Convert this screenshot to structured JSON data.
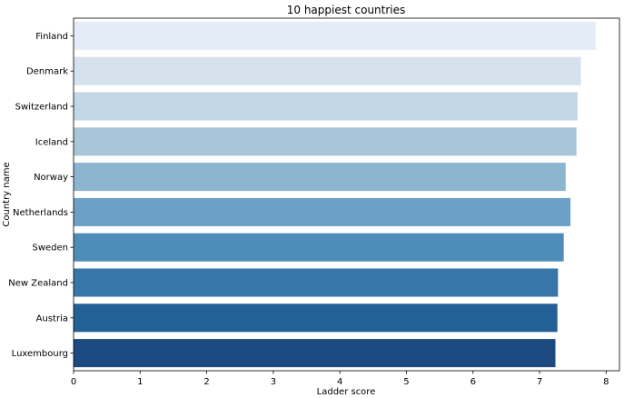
{
  "chart_data": {
    "type": "bar",
    "orientation": "horizontal",
    "title": "10 happiest countries",
    "xlabel": "Ladder score",
    "ylabel": "Country name",
    "categories": [
      "Finland",
      "Denmark",
      "Switzerland",
      "Iceland",
      "Norway",
      "Netherlands",
      "Sweden",
      "New Zealand",
      "Austria",
      "Luxembourg"
    ],
    "values": [
      7.842,
      7.62,
      7.571,
      7.554,
      7.392,
      7.464,
      7.363,
      7.277,
      7.268,
      7.238
    ],
    "xlim": [
      0,
      8.2
    ],
    "xticks": [
      0,
      1,
      2,
      3,
      4,
      5,
      6,
      7,
      8
    ],
    "grid": false,
    "legend": "none",
    "palette": "Blues",
    "colors": [
      "#e4edf7",
      "#d5e2ee",
      "#c2d7e6",
      "#a8c6d9",
      "#8cb5d0",
      "#6ba1c6",
      "#4f8db9",
      "#3876aa",
      "#236096",
      "#1b4980"
    ]
  }
}
